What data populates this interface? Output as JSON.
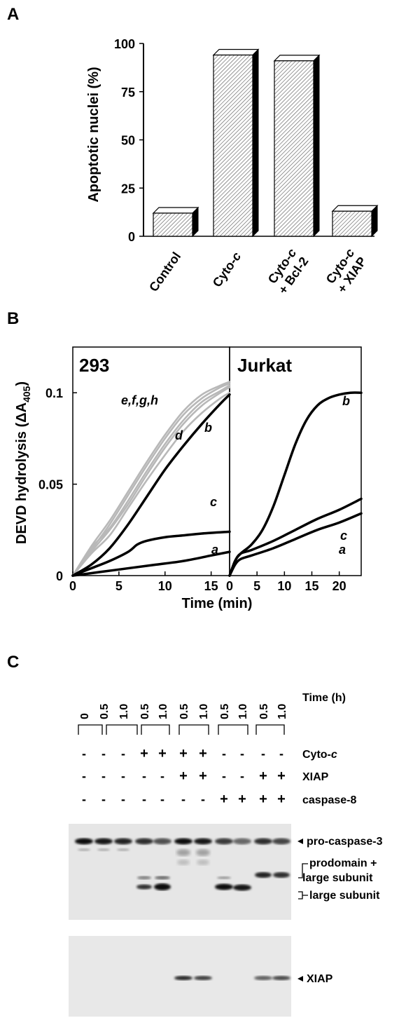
{
  "panel_a": {
    "letter": "A",
    "chart_data": {
      "type": "bar",
      "categories": [
        "Control",
        "Cyto-c",
        "Cyto-c + Bcl-2",
        "Cyto-c + XIAP"
      ],
      "category_lines": [
        [
          "Control"
        ],
        [
          "Cyto-c"
        ],
        [
          "Cyto-c",
          "+ Bcl-2"
        ],
        [
          "Cyto-c",
          "+ XIAP"
        ]
      ],
      "values": [
        12,
        94,
        91,
        13
      ],
      "ylabel": "Apoptotic nuclei (%)",
      "ylim": [
        0,
        100
      ],
      "yticks": [
        0,
        25,
        50,
        75,
        100
      ]
    }
  },
  "panel_b": {
    "letter": "B",
    "ylabel": "DEVD hydrolysis (ΔA",
    "ylabel_sub": "405",
    "ylabel_close": ")",
    "xlabel": "Time (min)",
    "yticks": [
      0,
      0.05,
      0.1
    ],
    "ylim": [
      0,
      0.125
    ],
    "chart_data": [
      {
        "type": "line",
        "title": "293",
        "xlim": [
          0,
          17
        ],
        "xticks": [
          0,
          5,
          10,
          15
        ],
        "gray_label": "e,f,g,h",
        "series": [
          {
            "name": "a",
            "color": "#000000",
            "x": [
              0,
              3,
              6,
              9,
              12,
              15,
              17
            ],
            "y": [
              0,
              0.002,
              0.004,
              0.006,
              0.008,
              0.011,
              0.013
            ]
          },
          {
            "name": "c",
            "color": "#000000",
            "x": [
              0,
              2,
              4,
              6,
              7,
              8,
              10,
              12,
              14,
              17
            ],
            "y": [
              0,
              0.004,
              0.008,
              0.013,
              0.017,
              0.019,
              0.021,
              0.022,
              0.023,
              0.024
            ]
          },
          {
            "name": "b",
            "color": "#000000",
            "x": [
              0,
              2,
              4,
              6,
              8,
              10,
              12,
              14,
              16,
              17
            ],
            "y": [
              0,
              0.006,
              0.015,
              0.028,
              0.043,
              0.058,
              0.071,
              0.083,
              0.094,
              0.099
            ]
          },
          {
            "name": "d",
            "color": "#b8b8b8",
            "x": [
              0,
              2,
              4,
              6,
              8,
              10,
              12,
              14,
              16,
              17
            ],
            "y": [
              0,
              0.012,
              0.022,
              0.037,
              0.052,
              0.066,
              0.079,
              0.089,
              0.097,
              0.1
            ]
          },
          {
            "name": "e",
            "color": "#b8b8b8",
            "x": [
              0,
              2,
              4,
              6,
              8,
              10,
              12,
              14,
              16,
              17
            ],
            "y": [
              0,
              0.015,
              0.026,
              0.041,
              0.057,
              0.072,
              0.085,
              0.095,
              0.101,
              0.104
            ]
          },
          {
            "name": "f",
            "color": "#b8b8b8",
            "x": [
              0,
              2,
              4,
              6,
              8,
              10,
              12,
              14,
              16,
              17
            ],
            "y": [
              0,
              0.014,
              0.028,
              0.044,
              0.06,
              0.075,
              0.088,
              0.097,
              0.103,
              0.105
            ]
          },
          {
            "name": "g",
            "color": "#b8b8b8",
            "x": [
              0,
              2,
              4,
              6,
              8,
              10,
              12,
              14,
              16,
              17
            ],
            "y": [
              0,
              0.016,
              0.03,
              0.046,
              0.062,
              0.077,
              0.09,
              0.099,
              0.104,
              0.106
            ]
          },
          {
            "name": "h",
            "color": "#b8b8b8",
            "x": [
              0,
              2,
              4,
              6,
              8,
              10,
              12,
              14,
              16,
              17
            ],
            "y": [
              0,
              0.013,
              0.025,
              0.039,
              0.055,
              0.07,
              0.083,
              0.093,
              0.1,
              0.103
            ]
          }
        ]
      },
      {
        "type": "line",
        "title": "Jurkat",
        "xlim": [
          0,
          24
        ],
        "xticks": [
          0,
          5,
          10,
          15,
          20
        ],
        "series": [
          {
            "name": "a",
            "color": "#000000",
            "x": [
              0,
              1,
              2,
              4,
              8,
              12,
              16,
              20,
              24
            ],
            "y": [
              0,
              0.006,
              0.009,
              0.011,
              0.015,
              0.02,
              0.025,
              0.029,
              0.034
            ]
          },
          {
            "name": "c",
            "color": "#000000",
            "x": [
              0,
              1,
              2,
              4,
              8,
              12,
              16,
              20,
              24
            ],
            "y": [
              0,
              0.008,
              0.012,
              0.014,
              0.019,
              0.025,
              0.031,
              0.036,
              0.042
            ]
          },
          {
            "name": "b",
            "color": "#000000",
            "x": [
              0,
              1,
              2,
              4,
              6,
              8,
              10,
              12,
              14,
              16,
              18,
              20,
              22,
              24
            ],
            "y": [
              0,
              0.008,
              0.012,
              0.017,
              0.025,
              0.038,
              0.055,
              0.072,
              0.085,
              0.093,
              0.097,
              0.099,
              0.1,
              0.1
            ]
          }
        ]
      }
    ]
  },
  "panel_c": {
    "letter": "C",
    "time_values": [
      "0",
      "0.5",
      "1.0",
      "0.5",
      "1.0",
      "0.5",
      "1.0",
      "0.5",
      "1.0",
      "0.5",
      "1.0"
    ],
    "row_labels": {
      "time": "Time (h)",
      "cyto": "Cyto-",
      "cyto_italic": "c",
      "xiap": "XIAP",
      "casp8": "caspase-8"
    },
    "rows": {
      "cyto": [
        "-",
        "-",
        "-",
        "+",
        "+",
        "+",
        "+",
        "-",
        "-",
        "-",
        "-"
      ],
      "xiap": [
        "-",
        "-",
        "-",
        "-",
        "-",
        "+",
        "+",
        "-",
        "-",
        "+",
        "+"
      ],
      "casp8": [
        "-",
        "-",
        "-",
        "-",
        "-",
        "-",
        "-",
        "+",
        "+",
        "+",
        "+"
      ]
    },
    "band_labels": {
      "procasp": "pro-caspase-3",
      "prodomain_line1": "prodomain +",
      "prodomain_line2": "large subunit",
      "large": "large subunit",
      "xiap": "XIAP"
    }
  }
}
